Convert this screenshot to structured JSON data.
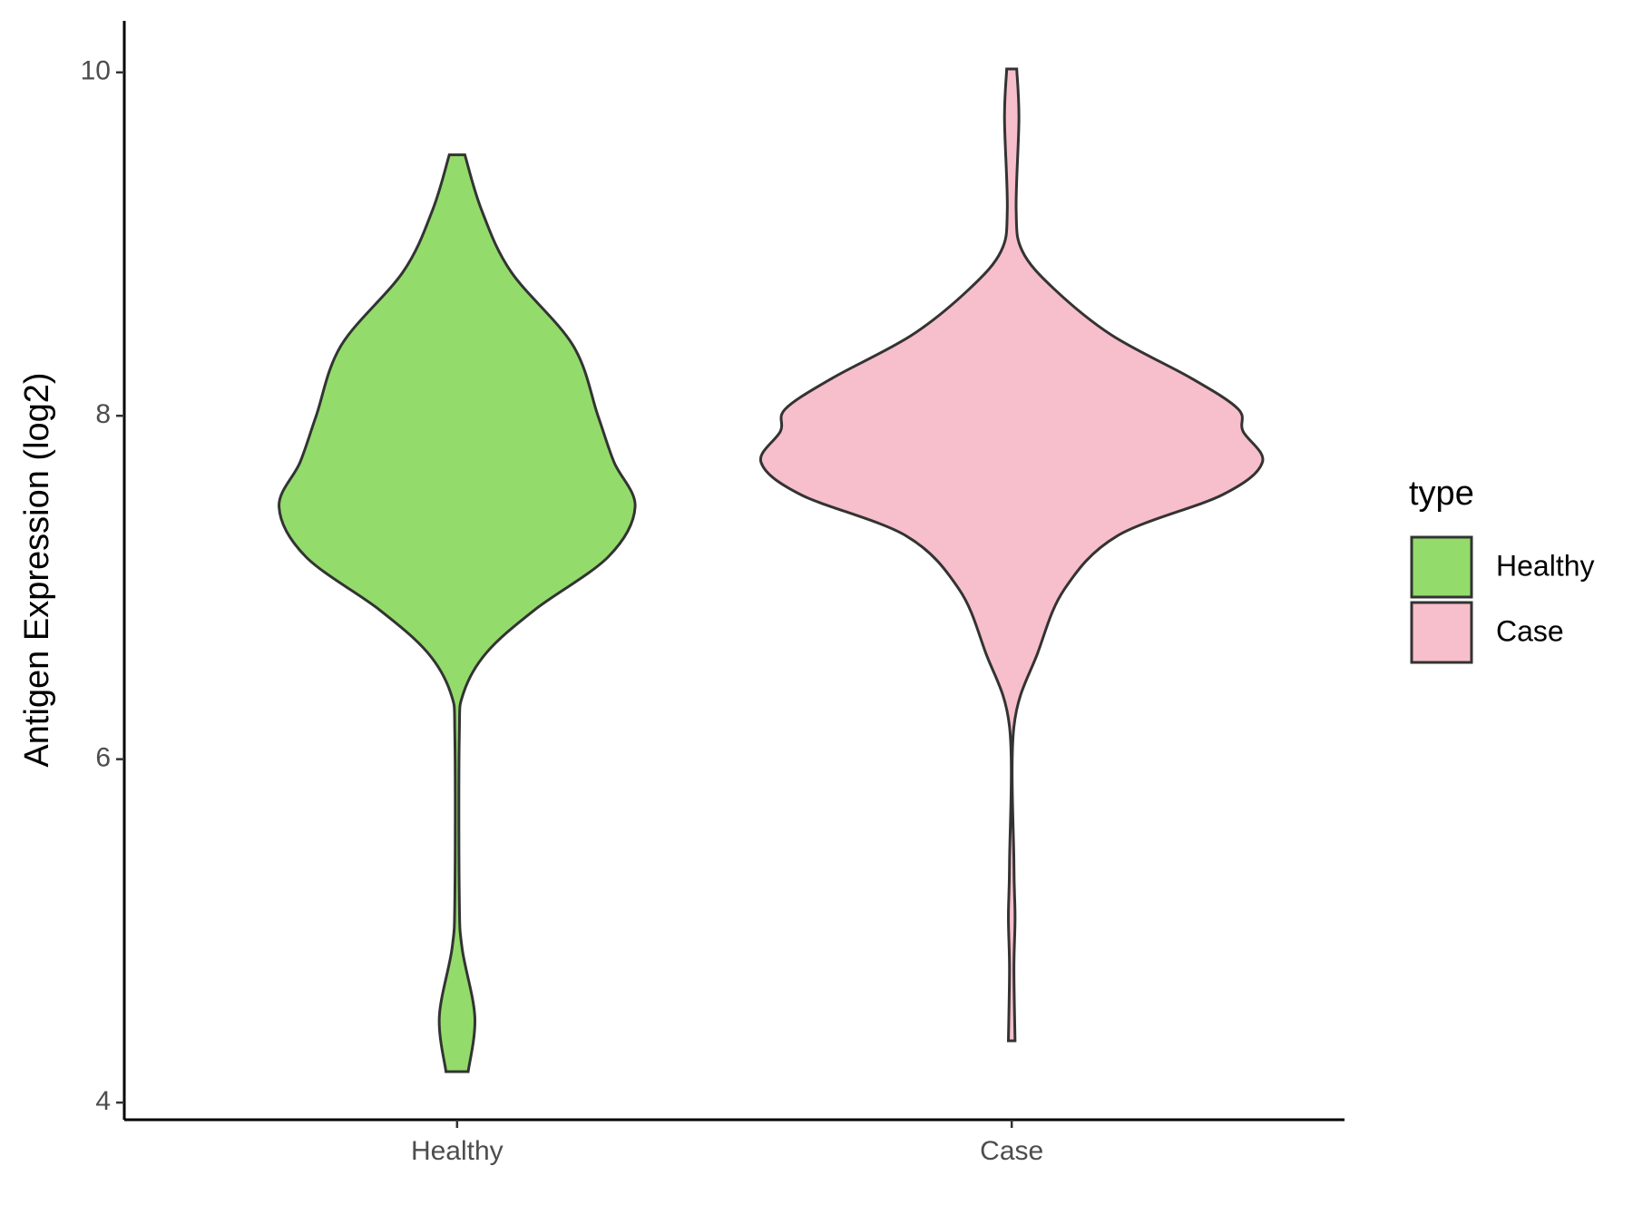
{
  "chart_data": {
    "type": "violin",
    "y_label": "Antigen Expression (log2)",
    "categories": [
      "Healthy",
      "Case"
    ],
    "ylim": [
      3.9,
      10.3
    ],
    "yticks": [
      4,
      6,
      8,
      10
    ],
    "legend_title": "type",
    "legend_position": "right",
    "series": [
      {
        "name": "Healthy",
        "color": "#93dc6b",
        "y": [
          9.52,
          9.2,
          8.84,
          8.41,
          8.0,
          7.73,
          7.47,
          7.18,
          6.87,
          6.62,
          6.38,
          6.13,
          5.2,
          4.9,
          4.5,
          4.18
        ],
        "widths": [
          0.014,
          0.044,
          0.097,
          0.209,
          0.254,
          0.283,
          0.321,
          0.273,
          0.14,
          0.053,
          0.011,
          0.004,
          0.004,
          0.009,
          0.032,
          0.02
        ]
      },
      {
        "name": "Case",
        "color": "#f7bfcb",
        "y": [
          10.02,
          9.73,
          9.2,
          8.96,
          8.74,
          8.47,
          8.22,
          8.04,
          7.91,
          7.73,
          7.54,
          7.3,
          6.99,
          6.62,
          6.19,
          5.39,
          5.08,
          4.78,
          4.36
        ],
        "widths": [
          0.009,
          0.013,
          0.008,
          0.019,
          0.076,
          0.18,
          0.323,
          0.408,
          0.417,
          0.452,
          0.38,
          0.19,
          0.095,
          0.047,
          0.004,
          0.004,
          0.006,
          0.004,
          0.006
        ]
      }
    ]
  }
}
